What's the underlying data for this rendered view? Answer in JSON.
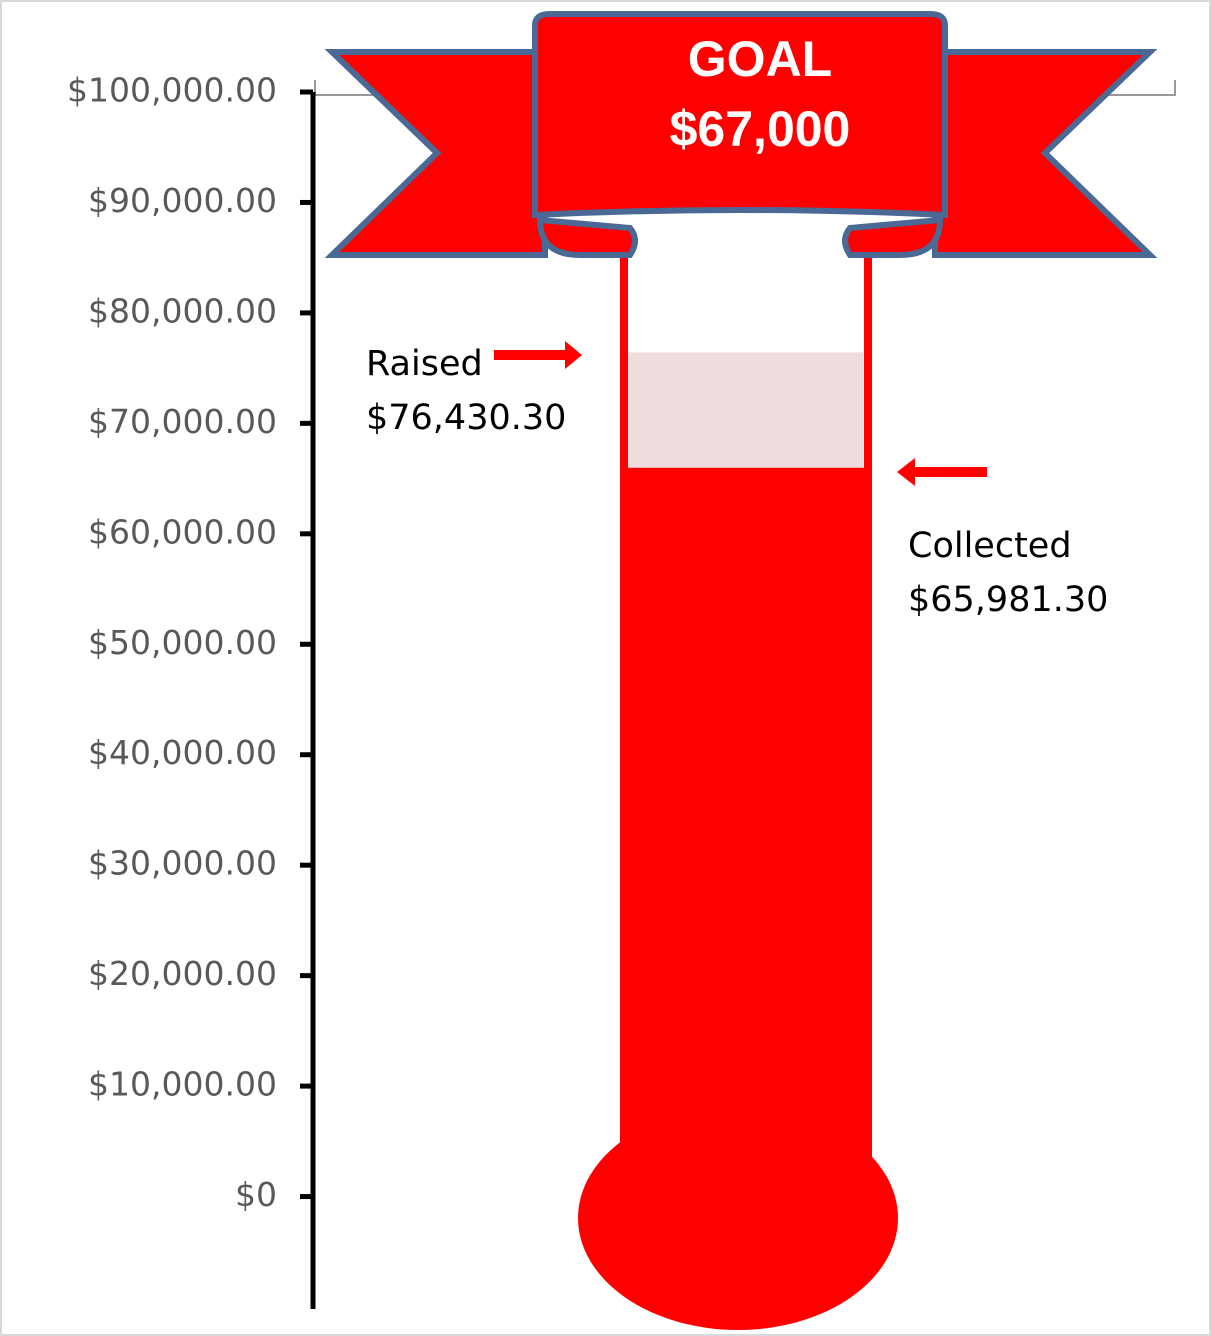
{
  "chart_data": {
    "type": "thermometer",
    "title": "GOAL",
    "subtitle": "$67,000",
    "series": [
      {
        "name": "Raised",
        "values": [
          76430.3
        ],
        "value_labels": [
          "$76,430.30"
        ],
        "color": "#f0dcdc"
      },
      {
        "name": "Collected",
        "values": [
          65981.3
        ],
        "value_labels": [
          "$65,981.30"
        ],
        "color": "#ff0000"
      }
    ],
    "ylim": [
      -10000,
      100000
    ],
    "yticks": [
      {
        "value": 0,
        "label": "$0"
      },
      {
        "value": 10000,
        "label": "$10,000.00"
      },
      {
        "value": 20000,
        "label": "$20,000.00"
      },
      {
        "value": 30000,
        "label": "$30,000.00"
      },
      {
        "value": 40000,
        "label": "$40,000.00"
      },
      {
        "value": 50000,
        "label": "$50,000.00"
      },
      {
        "value": 60000,
        "label": "$60,000.00"
      },
      {
        "value": 70000,
        "label": "$70,000.00"
      },
      {
        "value": 80000,
        "label": "$80,000.00"
      },
      {
        "value": 90000,
        "label": "$90,000.00"
      },
      {
        "value": 100000,
        "label": "$100,000.00"
      }
    ]
  }
}
